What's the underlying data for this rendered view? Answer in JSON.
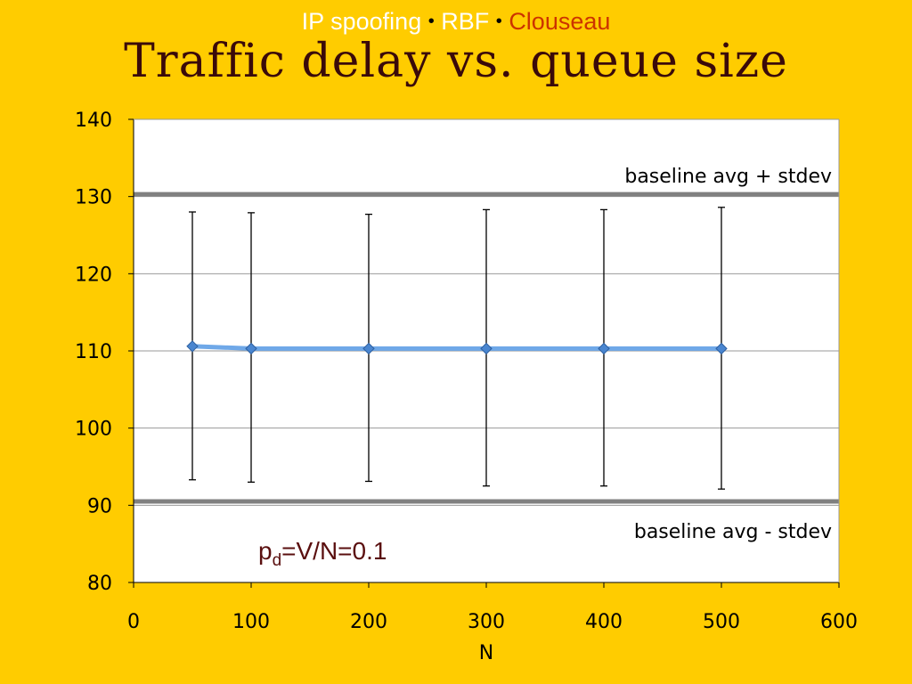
{
  "header": {
    "part1": "IP spoofing",
    "separator": "•",
    "part2": "RBF",
    "part3": "Clouseau"
  },
  "title": "Traffic delay vs. queue size",
  "colors": {
    "background": "#FFCC00",
    "plot_area": "#FFFFFF",
    "series_line": "#6FA8E8",
    "reference_lines": "#808080",
    "error_bars": "#000000",
    "header_text": "#FFFFFF",
    "header_highlight": "#CC3300",
    "title_text": "#3A0A0A"
  },
  "chart_data": {
    "type": "line",
    "title": "Traffic delay vs. queue size",
    "xlabel": "N",
    "ylabel": "",
    "xlim": [
      0,
      600
    ],
    "ylim": [
      80,
      140
    ],
    "x_ticks": [
      0,
      100,
      200,
      300,
      400,
      500,
      600
    ],
    "y_ticks": [
      80,
      90,
      100,
      110,
      120,
      130,
      140
    ],
    "grid": "horizontal",
    "legend": "none",
    "series": [
      {
        "x": [
          50,
          100,
          200,
          300,
          400,
          500
        ],
        "y": [
          110.6,
          110.3,
          110.3,
          110.3,
          110.3,
          110.3
        ],
        "error_high": [
          128.0,
          127.9,
          127.7,
          128.3,
          128.3,
          128.6
        ],
        "error_low": [
          93.3,
          93.0,
          93.1,
          92.5,
          92.5,
          92.1
        ],
        "marker": "diamond"
      }
    ],
    "reference_lines": [
      {
        "y": 130.3,
        "label": "baseline avg + stdev"
      },
      {
        "y": 90.5,
        "label": "baseline avg - stdev"
      }
    ],
    "annotation": {
      "base": "p",
      "subscript": "d",
      "rest": "=V/N=0.1"
    }
  }
}
